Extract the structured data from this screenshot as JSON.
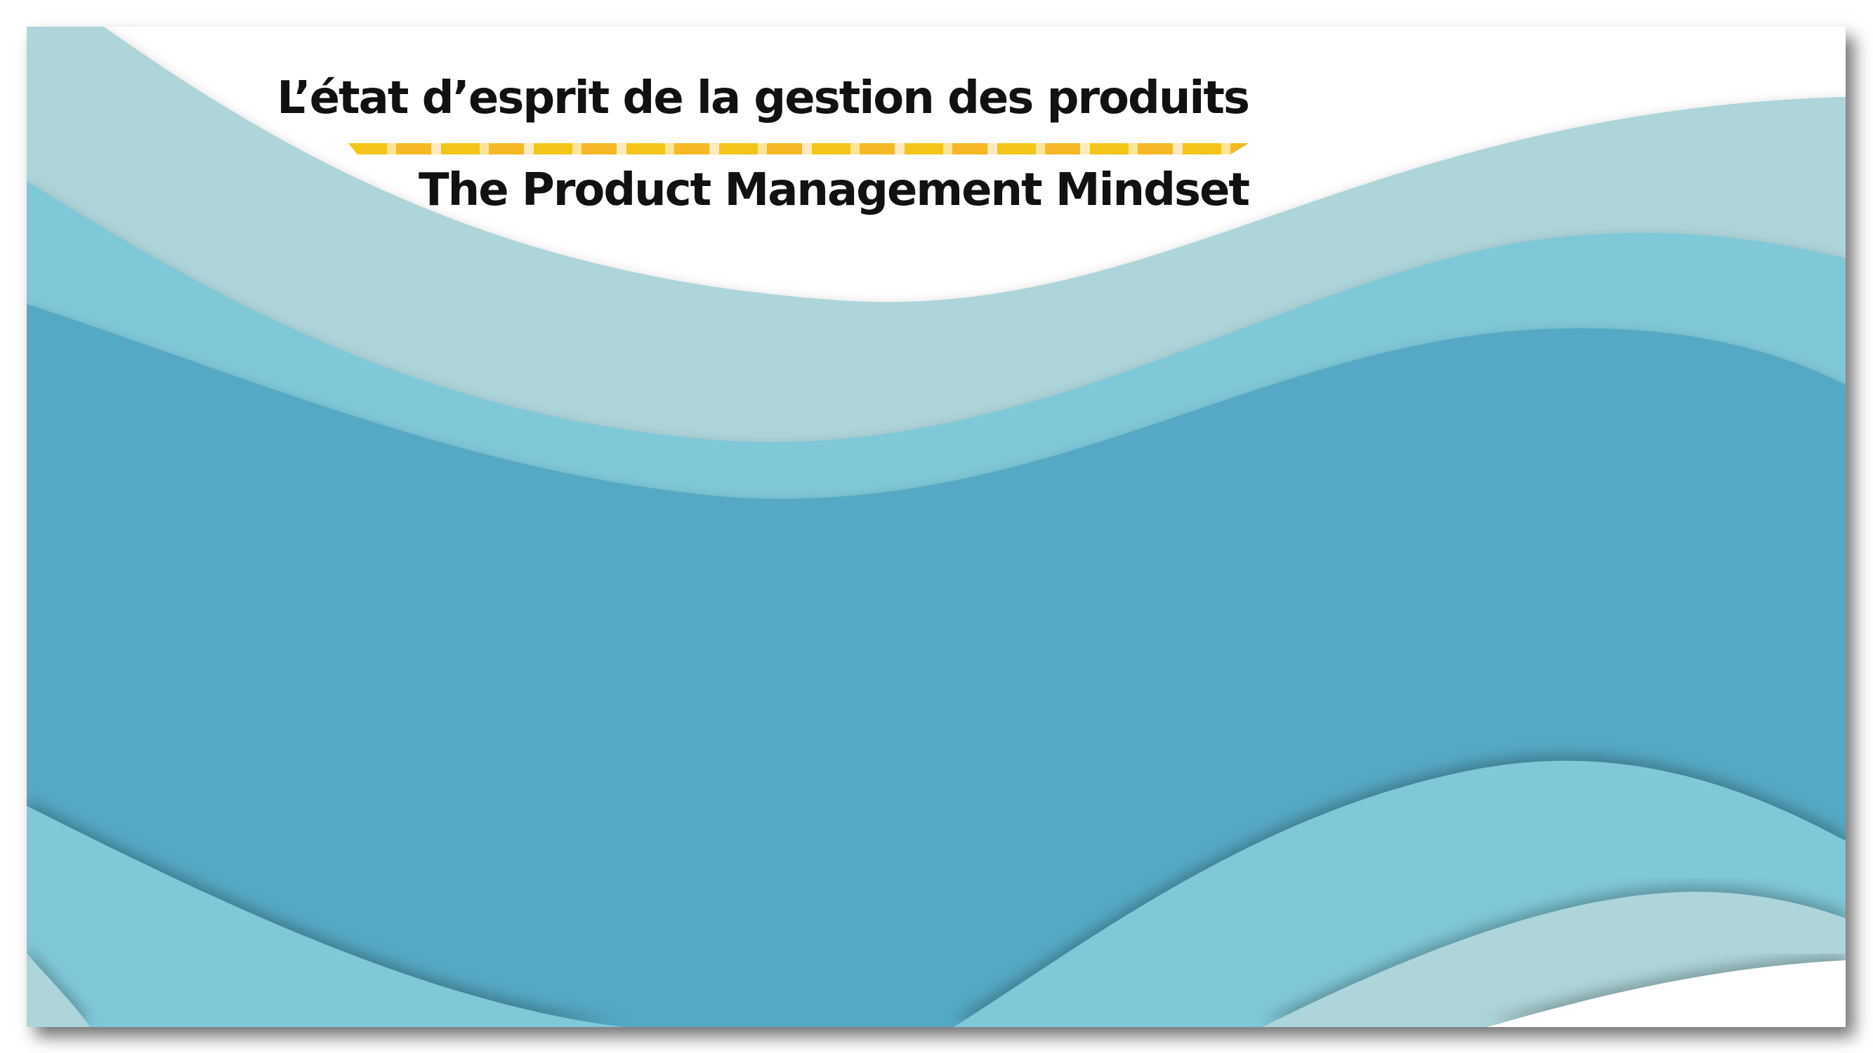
{
  "slide": {
    "title_fr": "L’état d’esprit de la gestion des produits",
    "title_en": "The Product Management Mindset"
  },
  "colors": {
    "wave_light": "#add5da",
    "wave_mid": "#7fc8d8",
    "wave_deep": "#55a9c4",
    "underline_yellow": "#f4c20d",
    "background": "#ffffff",
    "text": "#111111"
  }
}
